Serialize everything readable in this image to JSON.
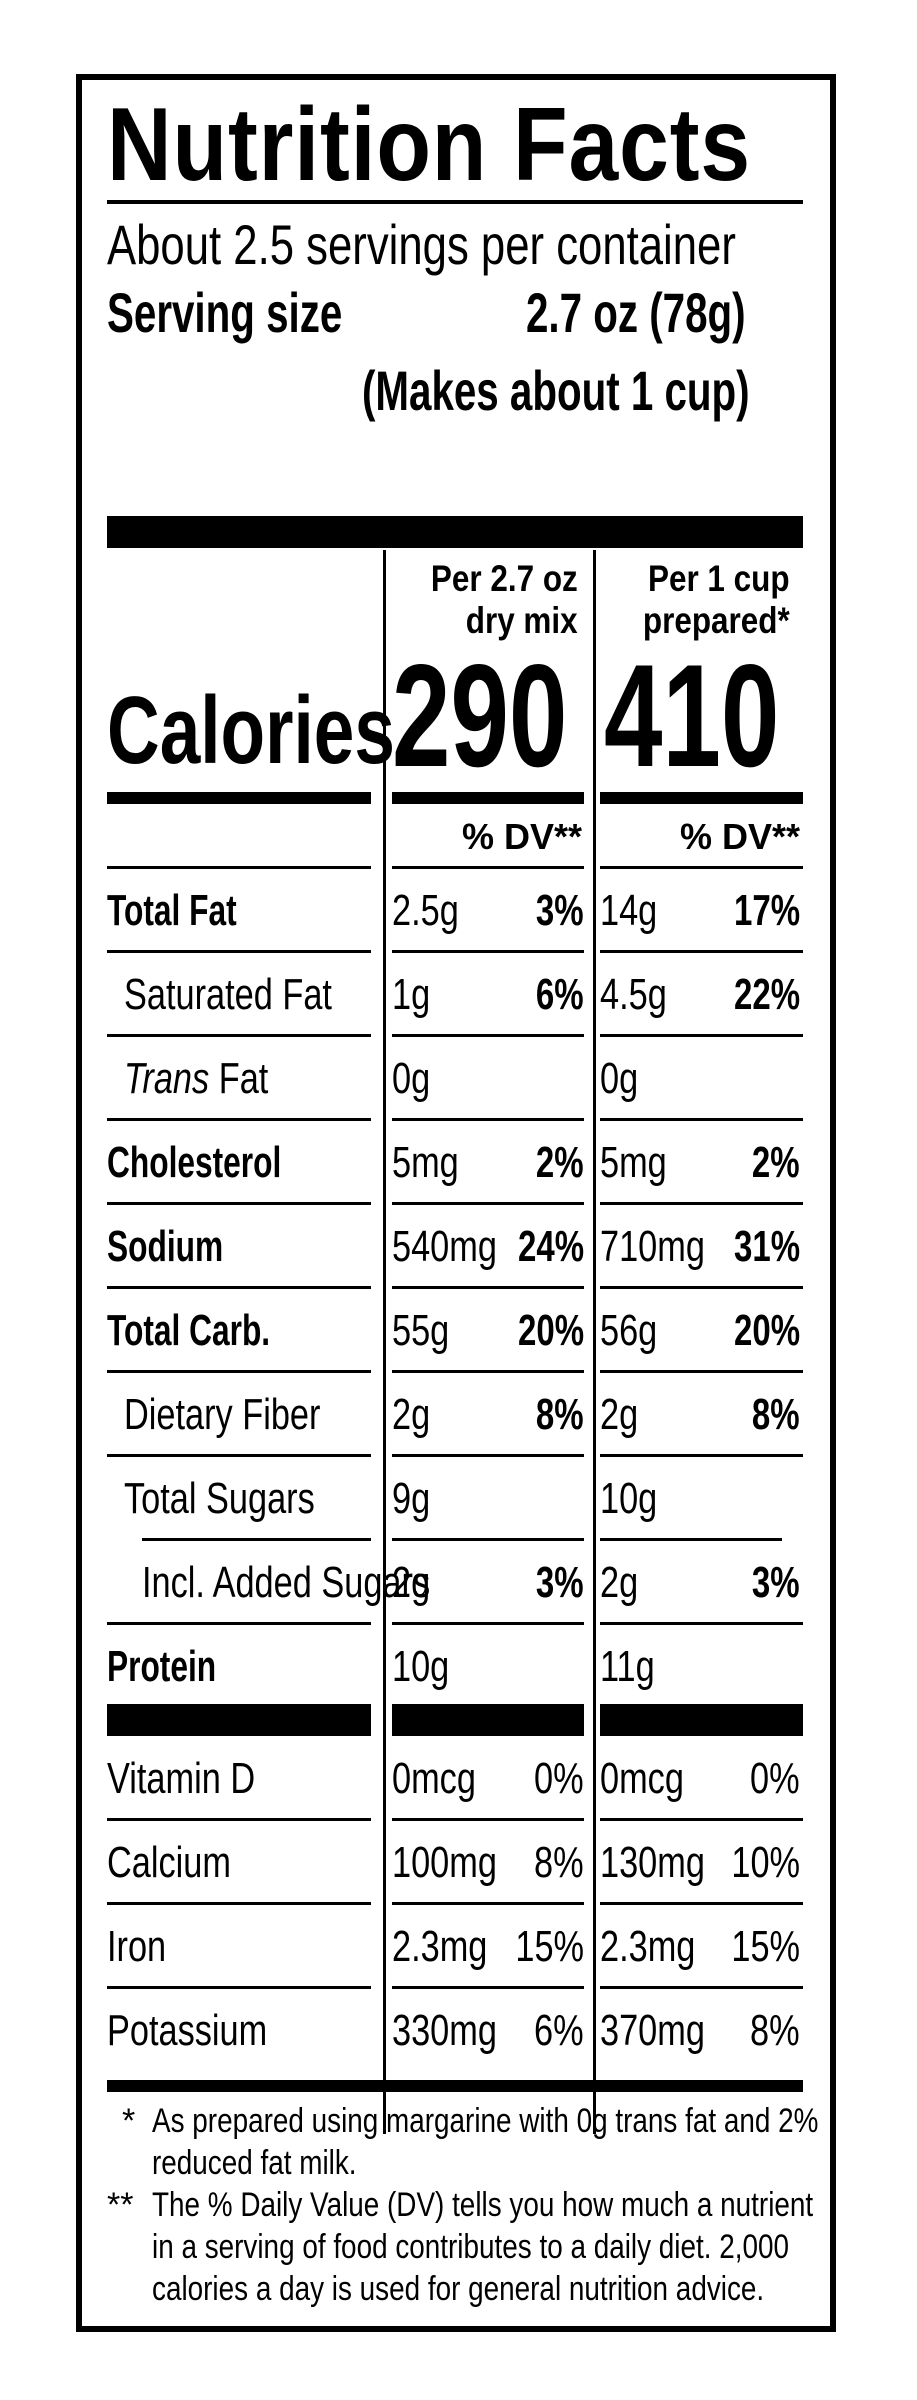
{
  "label": {
    "title": "Nutrition Facts",
    "servings_per_container": "About 2.5 servings per container",
    "serving_size_label": "Serving size",
    "serving_size_value": "2.7 oz (78g)",
    "serving_makes": "(Makes about 1 cup)",
    "calories_label": "Calories",
    "columns": [
      {
        "header_line1": "Per 2.7 oz",
        "header_line2": "dry mix",
        "calories": "290",
        "dv_header": "% DV**"
      },
      {
        "header_line1": "Per 1 cup",
        "header_line2": "prepared*",
        "calories": "410",
        "dv_header": "% DV**"
      }
    ],
    "nutrients": [
      {
        "name": "Total Fat",
        "col1_amount": "2.5g",
        "col1_dv": "3%",
        "col2_amount": "14g",
        "col2_dv": "17%"
      },
      {
        "name": "Saturated Fat",
        "col1_amount": "1g",
        "col1_dv": "6%",
        "col2_amount": "4.5g",
        "col2_dv": "22%"
      },
      {
        "name_italic": "Trans",
        "name_rest": " Fat",
        "col1_amount": "0g",
        "col1_dv": "",
        "col2_amount": "0g",
        "col2_dv": ""
      },
      {
        "name": "Cholesterol",
        "col1_amount": "5mg",
        "col1_dv": "2%",
        "col2_amount": "5mg",
        "col2_dv": "2%"
      },
      {
        "name": "Sodium",
        "col1_amount": "540mg",
        "col1_dv": "24%",
        "col2_amount": "710mg",
        "col2_dv": "31%"
      },
      {
        "name": "Total Carb.",
        "col1_amount": "55g",
        "col1_dv": "20%",
        "col2_amount": "56g",
        "col2_dv": "20%"
      },
      {
        "name": "Dietary Fiber",
        "col1_amount": "2g",
        "col1_dv": "8%",
        "col2_amount": "2g",
        "col2_dv": "8%"
      },
      {
        "name": "Total Sugars",
        "col1_amount": "9g",
        "col1_dv": "",
        "col2_amount": "10g",
        "col2_dv": ""
      },
      {
        "name": "Incl. Added Sugars",
        "col1_amount": "2g",
        "col1_dv": "3%",
        "col2_amount": "2g",
        "col2_dv": "3%"
      },
      {
        "name": "Protein",
        "col1_amount": "10g",
        "col1_dv": "",
        "col2_amount": "11g",
        "col2_dv": ""
      }
    ],
    "vitamins": [
      {
        "name": "Vitamin D",
        "col1_amount": "0mcg",
        "col1_dv": "0%",
        "col2_amount": "0mcg",
        "col2_dv": "0%"
      },
      {
        "name": "Calcium",
        "col1_amount": "100mg",
        "col1_dv": "8%",
        "col2_amount": "130mg",
        "col2_dv": "10%"
      },
      {
        "name": "Iron",
        "col1_amount": "2.3mg",
        "col1_dv": "15%",
        "col2_amount": "2.3mg",
        "col2_dv": "15%"
      },
      {
        "name": "Potassium",
        "col1_amount": "330mg",
        "col1_dv": "6%",
        "col2_amount": "370mg",
        "col2_dv": "8%"
      }
    ],
    "footnotes": [
      {
        "marker": "*",
        "line1": "As prepared using margarine with 0g trans fat and 2%",
        "line2": "reduced fat milk."
      },
      {
        "marker": "**",
        "line1": "The % Daily Value (DV) tells you how much a nutrient",
        "line2": "in a serving of food contributes to a daily diet. 2,000",
        "line3": "calories a day is used for general nutrition advice."
      }
    ]
  }
}
